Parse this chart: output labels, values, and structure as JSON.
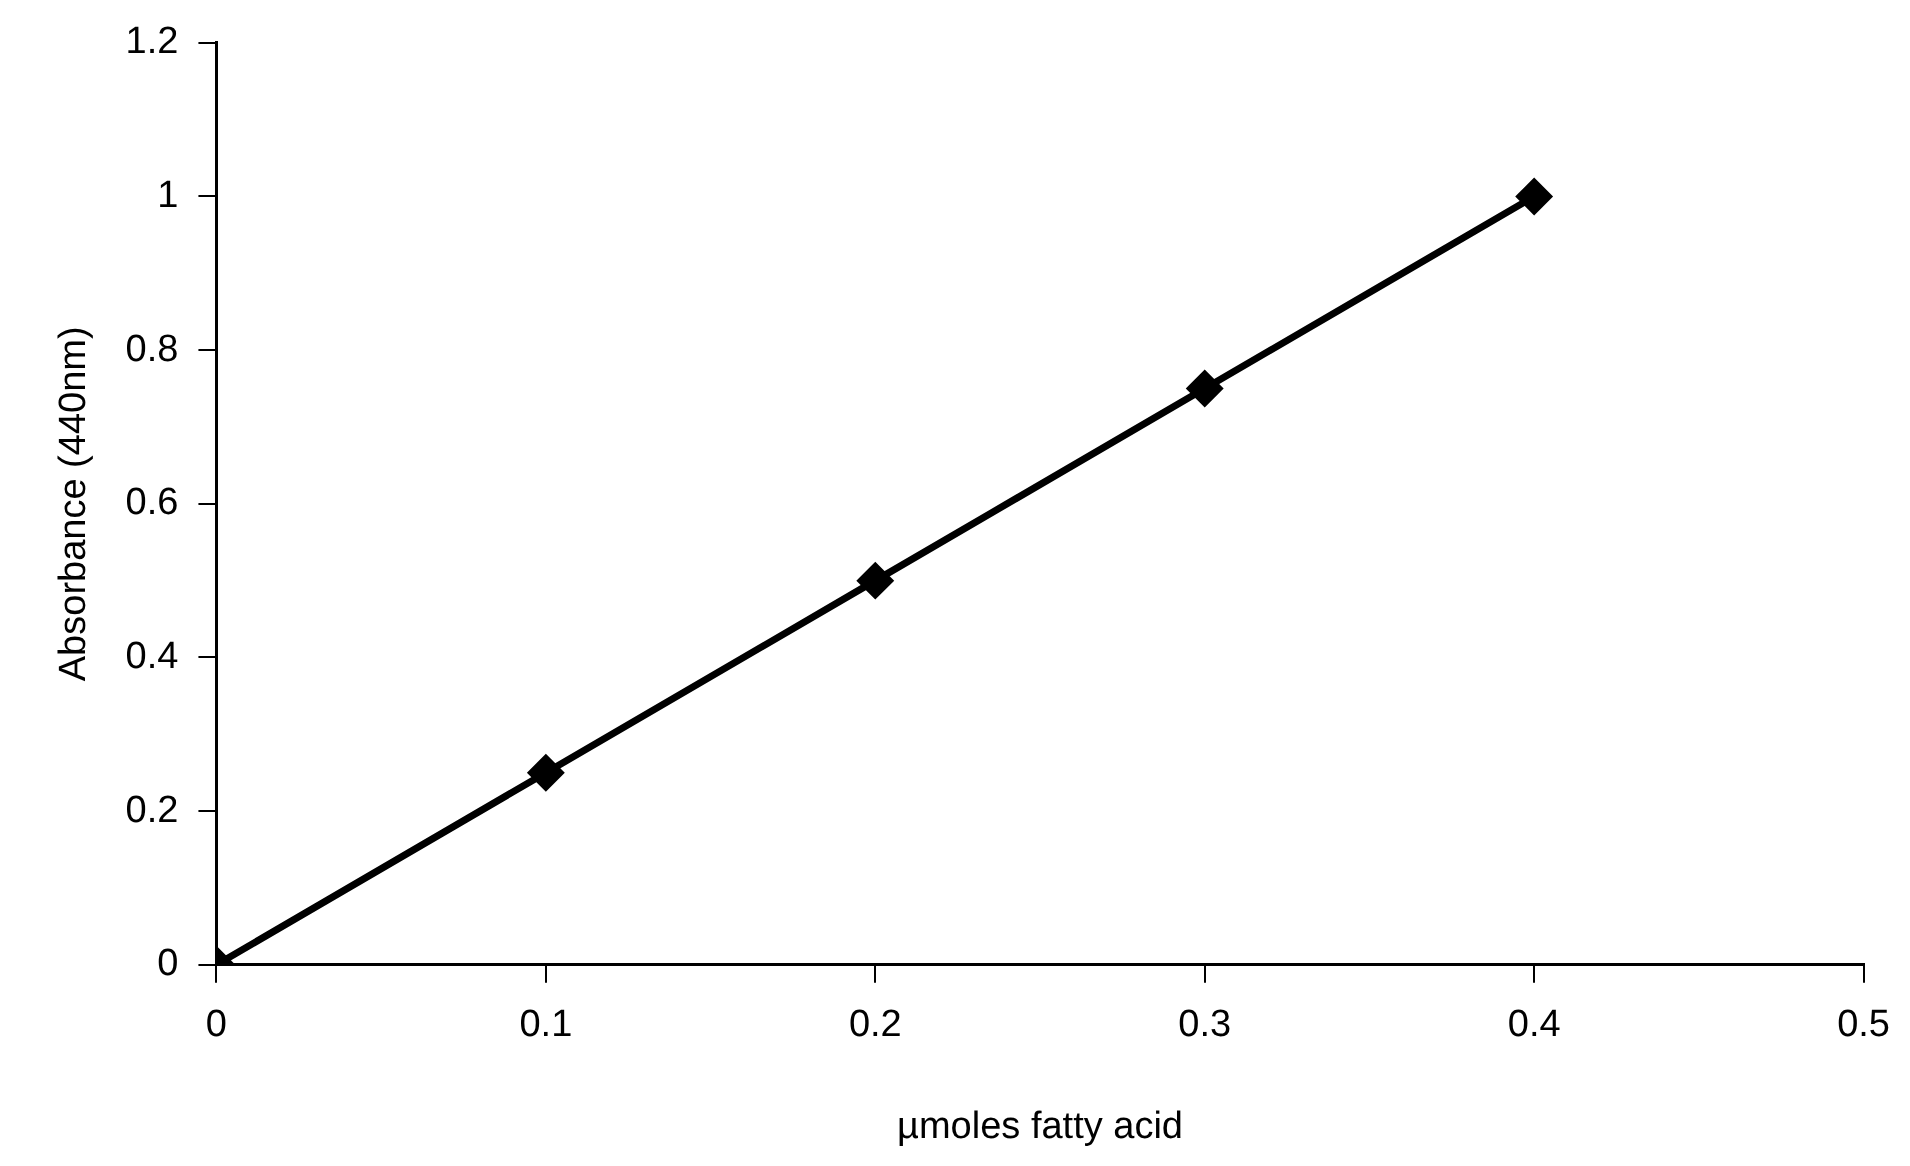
{
  "chart_data": {
    "type": "line",
    "xlabel": "µmoles fatty acid",
    "ylabel": "Absorbance (440nm)",
    "x": [
      0,
      0.1,
      0.2,
      0.3,
      0.4
    ],
    "series": [
      {
        "color": "#000000",
        "values": [
          0,
          0.25,
          0.5,
          0.75,
          1
        ]
      }
    ],
    "xlim": [
      0,
      0.5
    ],
    "xticks": [
      0,
      0.1,
      0.2,
      0.3,
      0.4,
      0.5
    ],
    "ylim": [
      0,
      1.2
    ],
    "yticks": [
      0,
      0.2,
      0.4,
      0.6,
      0.8,
      1,
      1.2
    ],
    "grid": false,
    "legend": false,
    "marker": "diamond",
    "line_style": "solid"
  }
}
